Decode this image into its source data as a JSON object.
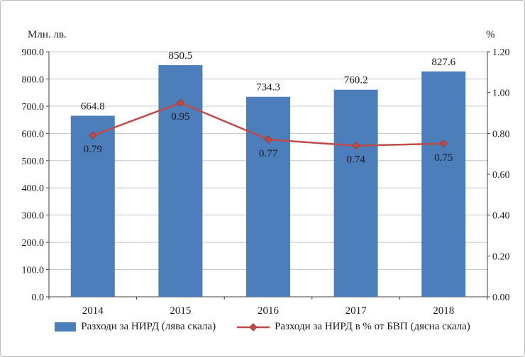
{
  "chart_data": {
    "type": "combo",
    "title": "",
    "categories": [
      "2014",
      "2015",
      "2016",
      "2017",
      "2018"
    ],
    "series": [
      {
        "name": "Разходи за НИРД (лява скала)",
        "type": "bar",
        "axis": "left",
        "values": [
          664.8,
          850.5,
          734.3,
          760.2,
          827.6
        ],
        "labels": [
          "664.8",
          "850.5",
          "734.3",
          "760.2",
          "827.6"
        ]
      },
      {
        "name": "Разходи за НИРД в % от БВП (дясна скала)",
        "type": "line",
        "axis": "right",
        "values": [
          0.79,
          0.95,
          0.77,
          0.74,
          0.75
        ],
        "labels": [
          "0.79",
          "0.95",
          "0.77",
          "0.74",
          "0.75"
        ]
      }
    ],
    "left_axis": {
      "title": "Млн. лв.",
      "min": 0,
      "max": 900,
      "step": 100,
      "ticks": [
        "0.0",
        "100.0",
        "200.0",
        "300.0",
        "400.0",
        "500.0",
        "600.0",
        "700.0",
        "800.0",
        "900.0"
      ]
    },
    "right_axis": {
      "title": "%",
      "min": 0,
      "max": 1.2,
      "step": 0.2,
      "ticks": [
        "0.00",
        "0.20",
        "0.40",
        "0.60",
        "0.80",
        "1.00",
        "1.20"
      ]
    },
    "grid": true,
    "legend_position": "bottom"
  },
  "colors": {
    "bar": "#4c7ebb",
    "line": "#be4b48",
    "marker_stroke": "#9e3a38",
    "grid": "#c6c6c6",
    "axis": "#404040",
    "text": "#1a1a1a"
  }
}
